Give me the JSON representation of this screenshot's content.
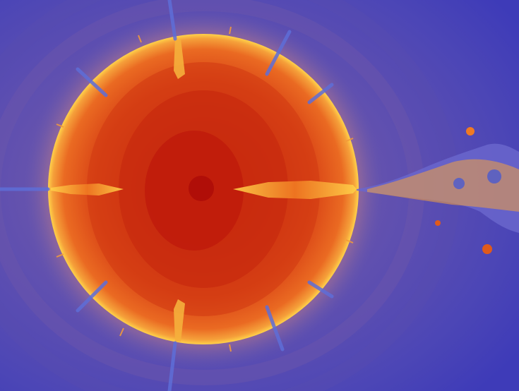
{
  "image": {
    "subject": "fractal",
    "colors": {
      "background_deep": "#3f3cb8",
      "background_mid": "#5a4fb2",
      "halo_purple": "#7b63a8",
      "halo_mauve": "#a66f8c",
      "rim_orange": "#f29a3a",
      "rim_yellow": "#ffd24a",
      "disc_outer": "#e2571a",
      "disc_mid": "#cf3d12",
      "disc_core": "#b8120a",
      "filament_blue": "#5e6ed8"
    }
  }
}
